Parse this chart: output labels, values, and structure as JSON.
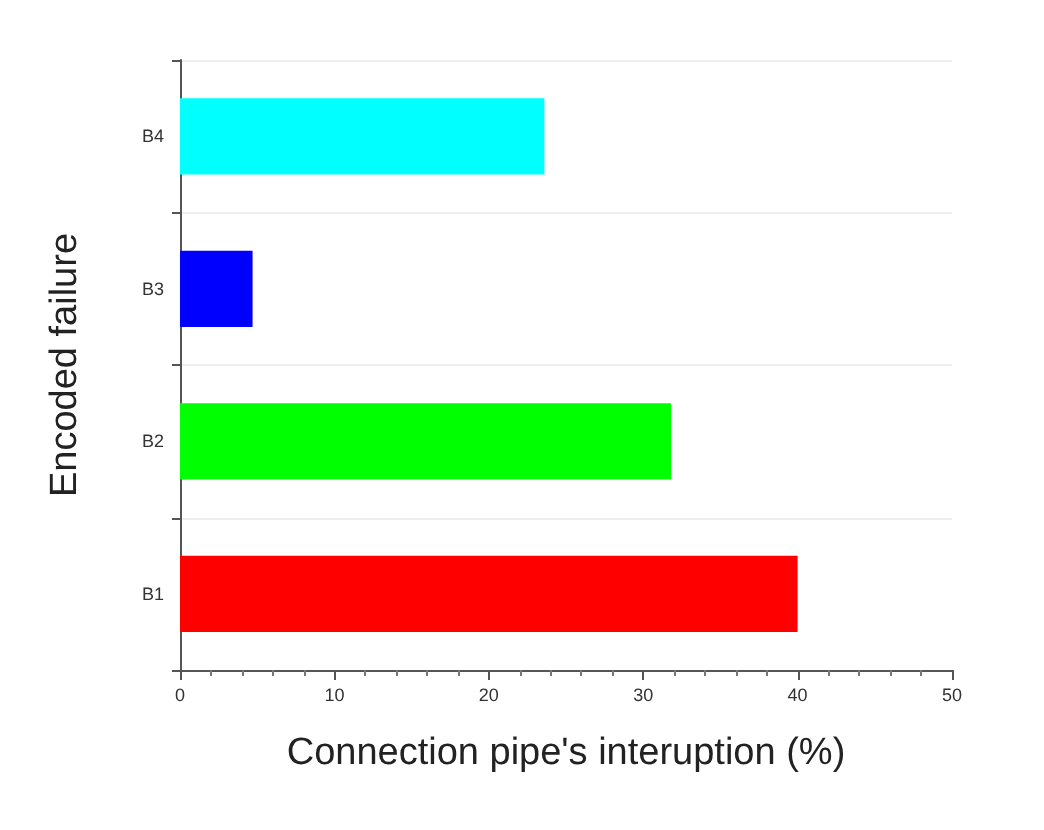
{
  "chart_data": {
    "type": "bar",
    "orientation": "horizontal",
    "xlabel": "Connection pipe's interuption (%)",
    "ylabel": "Encoded failure",
    "categories": [
      "B4",
      "B3",
      "B2",
      "B1"
    ],
    "values": [
      23.6,
      4.7,
      31.8,
      40
    ],
    "colors": [
      "#00ffff",
      "#0000ff",
      "#00ff00",
      "#ff0000"
    ],
    "xlim": [
      0,
      50
    ],
    "xticks": [
      0,
      10,
      20,
      30,
      40,
      50
    ],
    "grid": "y"
  }
}
